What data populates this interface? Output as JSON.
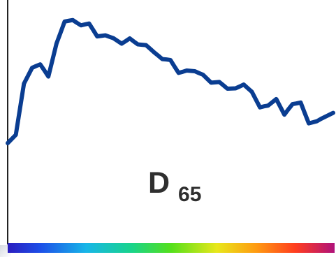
{
  "chart_data": {
    "type": "line",
    "label_main": "D",
    "label_sub": "65",
    "series": [
      {
        "color": "#0a3d91",
        "x": [
          380,
          385,
          390,
          395,
          400,
          405,
          410,
          415,
          420,
          425,
          430,
          435,
          440,
          445,
          450,
          455,
          460,
          465,
          470,
          475,
          480,
          485,
          490,
          495,
          500,
          505,
          510,
          515,
          520,
          525,
          530,
          535,
          540,
          545,
          550,
          555,
          560,
          565,
          570,
          575,
          580,
          585,
          590,
          595,
          600,
          605,
          610,
          615,
          620,
          625,
          630,
          635,
          640,
          645,
          650,
          655,
          660,
          665,
          670,
          675,
          680,
          685,
          690,
          695,
          700,
          705,
          710,
          715,
          720,
          725,
          730,
          735,
          740,
          745,
          750,
          755,
          760,
          765,
          770,
          775,
          780
        ],
        "y": [
          50.0,
          52.3,
          54.6,
          68.7,
          82.8,
          87.1,
          91.5,
          92.5,
          93.4,
          90.1,
          86.7,
          95.8,
          104.9,
          110.9,
          117.0,
          117.4,
          117.8,
          116.3,
          114.9,
          115.4,
          115.9,
          112.4,
          108.8,
          109.1,
          109.4,
          108.6,
          107.8,
          106.3,
          104.8,
          106.2,
          107.7,
          106.0,
          104.4,
          104.2,
          104.0,
          102.0,
          100.0,
          98.2,
          96.3,
          96.1,
          95.8,
          92.2,
          88.7,
          89.3,
          90.0,
          89.8,
          89.6,
          88.6,
          87.7,
          85.5,
          83.3,
          83.5,
          83.7,
          81.9,
          80.0,
          80.1,
          80.2,
          81.2,
          82.3,
          80.3,
          78.3,
          74.0,
          69.7,
          70.3,
          70.7,
          72.5,
          74.3,
          70.0,
          65.7,
          68.7,
          71.5,
          71.9,
          72.4,
          66.6,
          60.9,
          61.5,
          62.1,
          63.4,
          64.5,
          65.6,
          66.7
        ]
      }
    ],
    "xlim": [
      380,
      780
    ],
    "ylim": [
      0,
      125
    ],
    "grid": false,
    "xlabel": "",
    "ylabel": "",
    "spectrum_bar": true
  }
}
